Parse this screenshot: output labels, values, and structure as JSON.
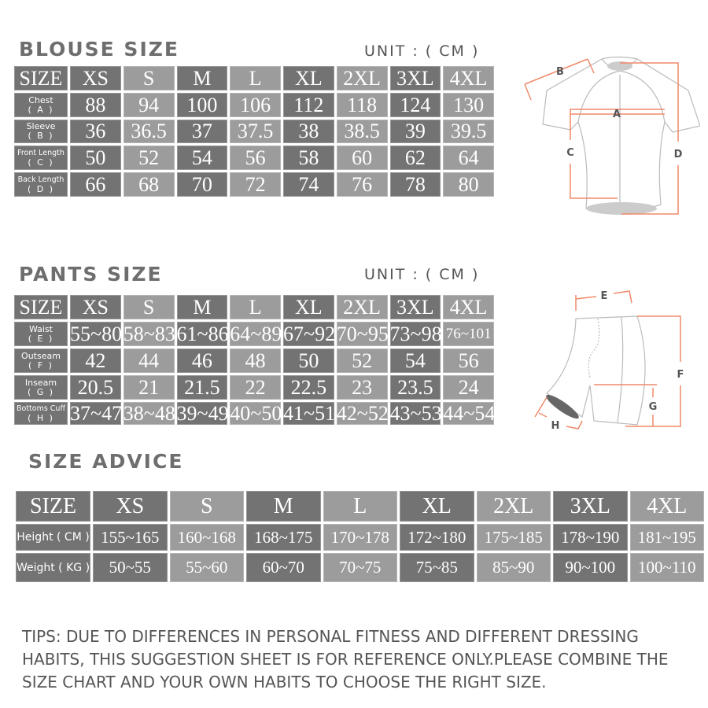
{
  "blouse": {
    "title": "BLOUSE SIZE",
    "unit": "UNIT : ( CM )",
    "header_label": "SIZE",
    "sizes": [
      "XS",
      "S",
      "M",
      "L",
      "XL",
      "2XL",
      "3XL",
      "4XL"
    ],
    "rows": [
      {
        "label": "Chest",
        "code": "( A )",
        "values": [
          "88",
          "94",
          "100",
          "106",
          "112",
          "118",
          "124",
          "130"
        ]
      },
      {
        "label": "Sleeve",
        "code": "( B )",
        "values": [
          "36",
          "36.5",
          "37",
          "37.5",
          "38",
          "38.5",
          "39",
          "39.5"
        ]
      },
      {
        "label": "Front Length",
        "code": "( C )",
        "values": [
          "50",
          "52",
          "54",
          "56",
          "58",
          "60",
          "62",
          "64"
        ]
      },
      {
        "label": "Back Length",
        "code": "( D )",
        "values": [
          "66",
          "68",
          "70",
          "72",
          "74",
          "76",
          "78",
          "80"
        ]
      }
    ],
    "diagram_labels": {
      "a": "A",
      "b": "B",
      "c": "C",
      "d": "D"
    }
  },
  "pants": {
    "title": "PANTS SIZE",
    "unit": "UNIT : ( CM )",
    "header_label": "SIZE",
    "sizes": [
      "XS",
      "S",
      "M",
      "L",
      "XL",
      "2XL",
      "3XL",
      "4XL"
    ],
    "rows": [
      {
        "label": "Waist",
        "code": "( E )",
        "values": [
          "55~80",
          "58~83",
          "61~86",
          "64~89",
          "67~92",
          "70~95",
          "73~98",
          "76~101"
        ]
      },
      {
        "label": "Outseam",
        "code": "( F )",
        "values": [
          "42",
          "44",
          "46",
          "48",
          "50",
          "52",
          "54",
          "56"
        ]
      },
      {
        "label": "Inseam",
        "code": "( G )",
        "values": [
          "20.5",
          "21",
          "21.5",
          "22",
          "22.5",
          "23",
          "23.5",
          "24"
        ]
      },
      {
        "label": "Bottoms Cuff",
        "code": "( H )",
        "values": [
          "37~47",
          "38~48",
          "39~49",
          "40~50",
          "41~51",
          "42~52",
          "43~53",
          "44~54"
        ]
      }
    ],
    "diagram_labels": {
      "e": "E",
      "f": "F",
      "g": "G",
      "h": "H"
    }
  },
  "advice": {
    "title": "SIZE ADVICE",
    "header_label": "SIZE",
    "sizes": [
      "XS",
      "S",
      "M",
      "L",
      "XL",
      "2XL",
      "3XL",
      "4XL"
    ],
    "rows": [
      {
        "label": "Height ( CM )",
        "values": [
          "155~165",
          "160~168",
          "168~175",
          "170~178",
          "172~180",
          "175~185",
          "178~190",
          "181~195"
        ]
      },
      {
        "label": "Weight ( KG )",
        "values": [
          "50~55",
          "55~60",
          "60~70",
          "70~75",
          "75~85",
          "85~90",
          "90~100",
          "100~110"
        ]
      }
    ]
  },
  "tips": "TIPS: DUE TO DIFFERENCES IN PERSONAL FITNESS AND DIFFERENT DRESSING HABITS, THIS SUGGESTION SHEET IS FOR REFERENCE ONLY.PLEASE COMBINE THE SIZE CHART AND YOUR OWN HABITS TO CHOOSE THE RIGHT SIZE.",
  "colors": {
    "dark_cell": "#737373",
    "light_cell": "#9c9c9c",
    "measure_line": "#f08a6a"
  }
}
